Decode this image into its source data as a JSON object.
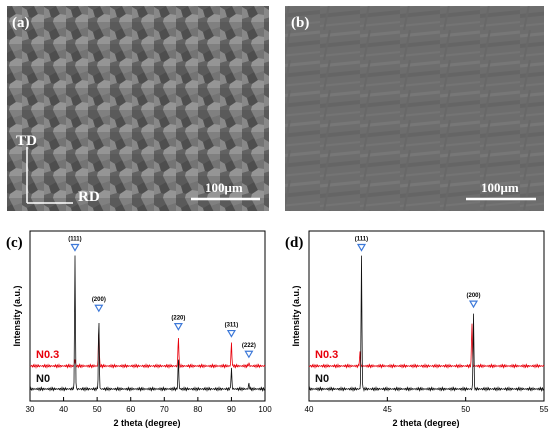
{
  "panels": {
    "a": {
      "label": "(a)",
      "scale_bar": "100μm",
      "axis_td": "TD",
      "axis_rd": "RD"
    },
    "b": {
      "label": "(b)",
      "scale_bar": "100μm"
    },
    "c": {
      "label": "(c)"
    },
    "d": {
      "label": "(d)"
    }
  },
  "chart_data": [
    {
      "type": "line",
      "panel": "(c)",
      "xlabel": "2 theta (degree)",
      "ylabel": "Intensity (a.u.)",
      "xlim": [
        30,
        100
      ],
      "xticks": [
        30,
        40,
        50,
        60,
        70,
        80,
        90,
        100
      ],
      "series": [
        {
          "name": "N0.3",
          "color": "#e8000b",
          "peaks": [
            43.4,
            50.5,
            74.2,
            90.0,
            95.2
          ],
          "peak_heights": [
            0.05,
            0.28,
            0.22,
            0.17,
            0.02
          ]
        },
        {
          "name": "N0",
          "color": "#111111",
          "peaks": [
            43.4,
            50.5,
            74.2,
            90.0,
            95.2
          ],
          "peak_heights": [
            0.96,
            0.52,
            0.22,
            0.15,
            0.04
          ]
        }
      ],
      "annotations": [
        {
          "text": "(111)",
          "x": 43.4
        },
        {
          "text": "(200)",
          "x": 50.5
        },
        {
          "text": "(220)",
          "x": 74.2
        },
        {
          "text": "(311)",
          "x": 90.0
        },
        {
          "text": "(222)",
          "x": 95.2
        }
      ]
    },
    {
      "type": "line",
      "panel": "(d)",
      "xlabel": "2 theta (degree)",
      "ylabel": "Intensity (a.u.)",
      "xlim": [
        40,
        55
      ],
      "xticks": [
        40,
        45,
        50,
        55
      ],
      "series": [
        {
          "name": "N0.3",
          "color": "#e8000b",
          "peaks": [
            43.25,
            50.4
          ],
          "peak_heights": [
            0.1,
            0.32
          ]
        },
        {
          "name": "N0",
          "color": "#111111",
          "peaks": [
            43.35,
            50.5
          ],
          "peak_heights": [
            0.96,
            0.55
          ]
        }
      ],
      "annotations": [
        {
          "text": "(111)",
          "x": 43.35
        },
        {
          "text": "(200)",
          "x": 50.5
        }
      ]
    }
  ],
  "colors": {
    "marker": "#3c78d8",
    "n03": "#e8000b",
    "n0": "#111111"
  }
}
